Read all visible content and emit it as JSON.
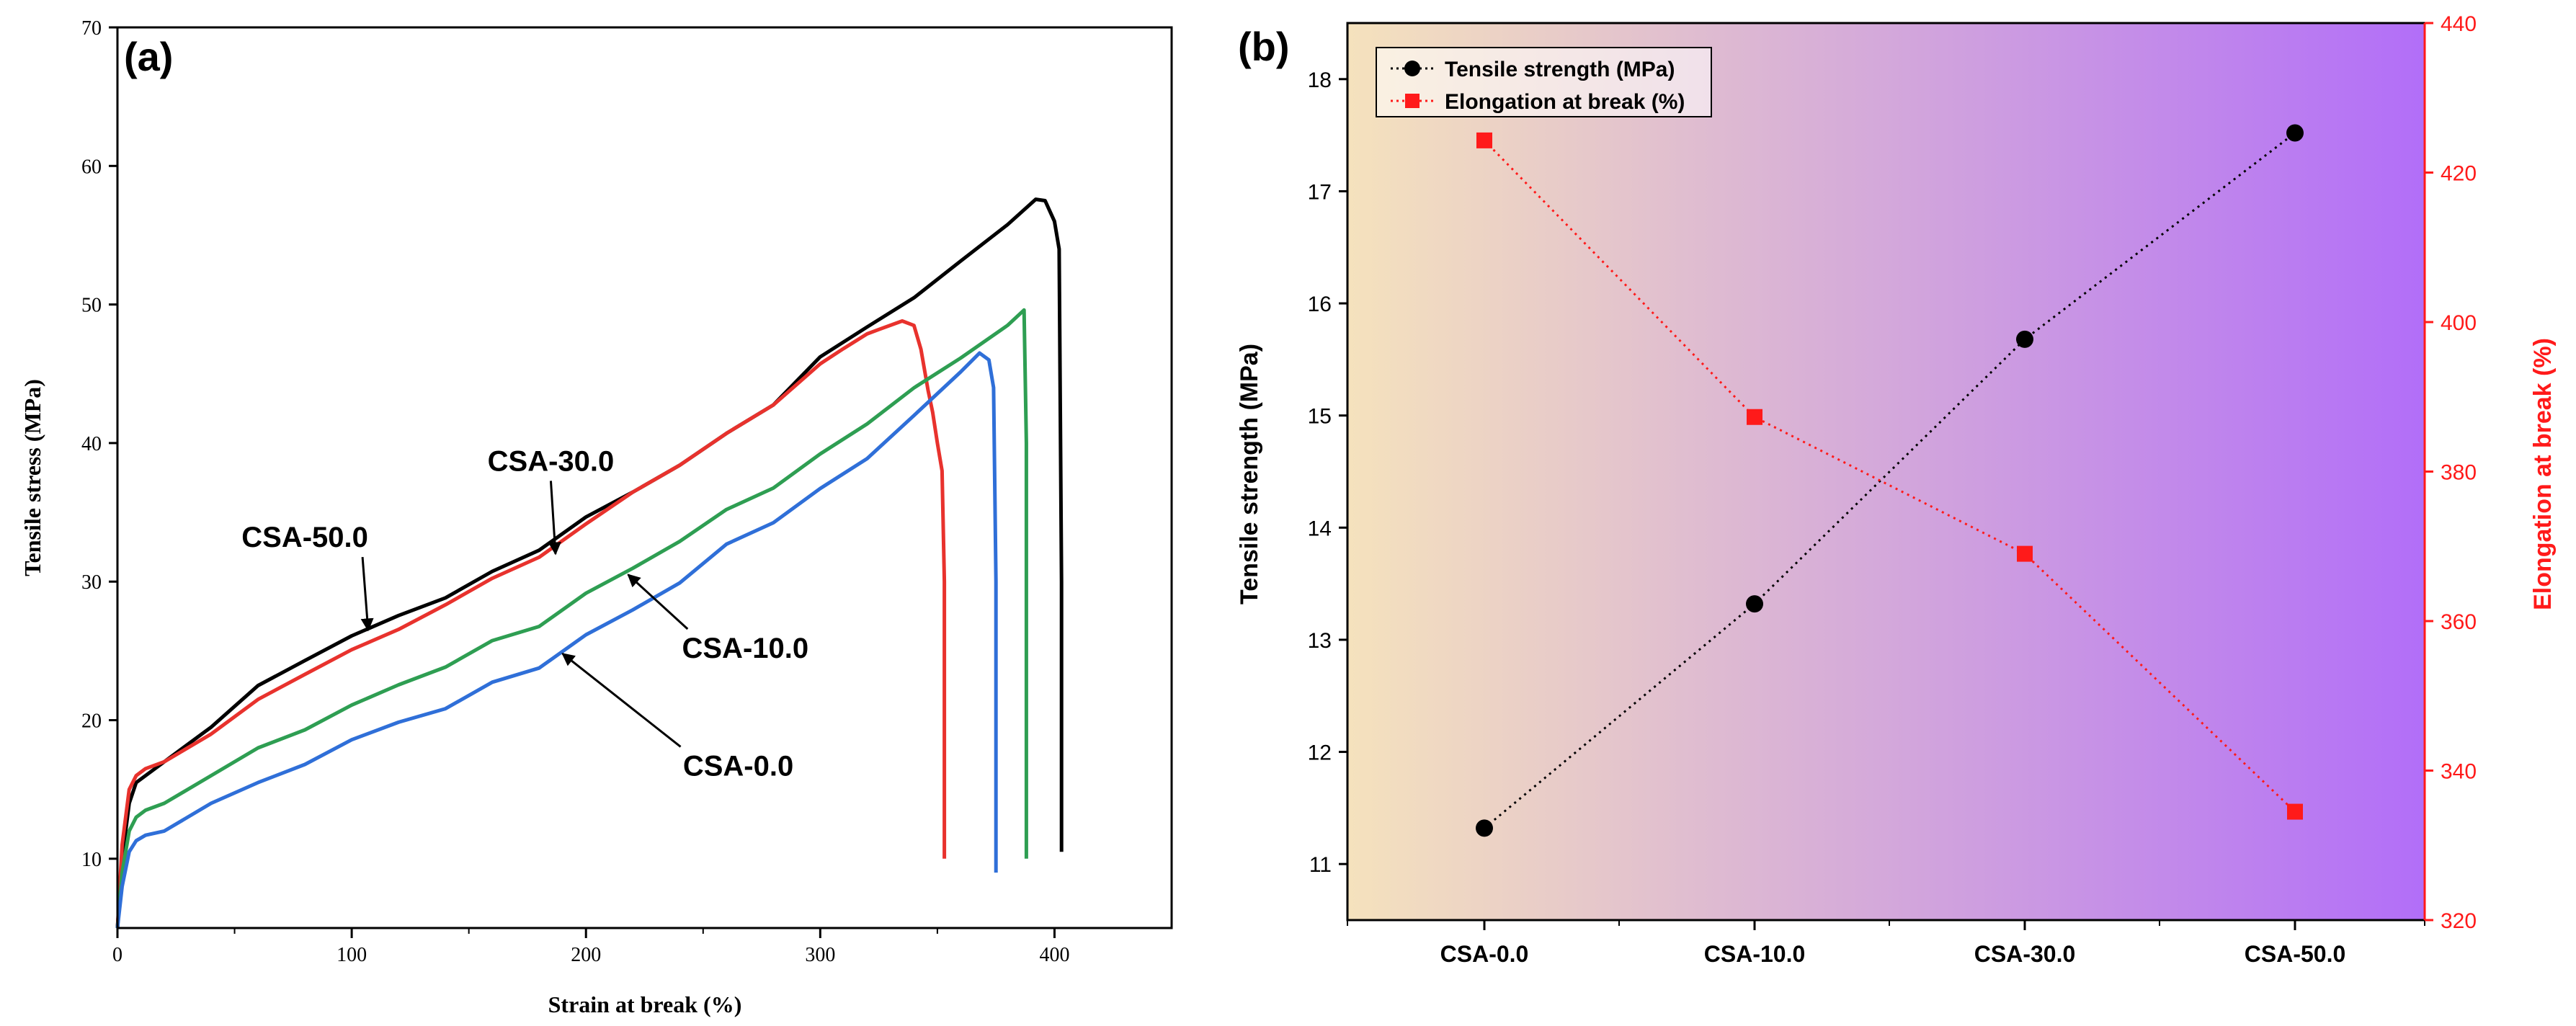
{
  "chart_data": [
    {
      "panel": "(a)",
      "type": "line",
      "xlabel": "Strain at break (%)",
      "ylabel": "Tensile stress (MPa)",
      "xlim": [
        0,
        450
      ],
      "ylim": [
        5,
        70
      ],
      "xticks": [
        0,
        100,
        200,
        300,
        400
      ],
      "yticks": [
        10,
        20,
        30,
        40,
        50,
        60,
        70
      ],
      "series": [
        {
          "name": "CSA-50.0",
          "color": "#000000",
          "x": [
            0,
            2,
            5,
            8,
            12,
            20,
            40,
            60,
            80,
            100,
            120,
            140,
            160,
            180,
            200,
            220,
            240,
            260,
            280,
            300,
            320,
            340,
            360,
            380,
            392,
            396,
            400,
            402,
            403,
            403
          ],
          "y": [
            5,
            10,
            14,
            15.5,
            16,
            17,
            19.5,
            22.5,
            24.5,
            26,
            27.5,
            29,
            30.5,
            32.5,
            34.5,
            36.5,
            38.5,
            40.5,
            43,
            46,
            48.5,
            50.5,
            53,
            56,
            57.5,
            57.3,
            56,
            54,
            30,
            10.5
          ]
        },
        {
          "name": "CSA-30.0",
          "color": "#e8322d",
          "x": [
            0,
            2,
            5,
            8,
            12,
            20,
            40,
            60,
            80,
            100,
            120,
            140,
            160,
            180,
            200,
            220,
            240,
            260,
            280,
            300,
            310,
            320,
            325,
            335,
            340,
            343,
            346,
            348,
            350,
            352,
            353,
            353
          ],
          "y": [
            5,
            11,
            15,
            16,
            16.5,
            17,
            19,
            21.5,
            23.5,
            25,
            26.5,
            28.5,
            30,
            32,
            34,
            36.5,
            38.5,
            40.5,
            43,
            45.5,
            47,
            48,
            48.3,
            49,
            48.5,
            47,
            44,
            42,
            40,
            38,
            30,
            10
          ]
        },
        {
          "name": "CSA-10.0",
          "color": "#2e9e52",
          "x": [
            0,
            2,
            5,
            8,
            12,
            20,
            40,
            60,
            80,
            100,
            120,
            140,
            160,
            180,
            200,
            220,
            240,
            260,
            280,
            300,
            320,
            340,
            360,
            380,
            387,
            388,
            388
          ],
          "y": [
            5,
            9,
            12,
            13,
            13.5,
            14,
            16,
            18,
            19.5,
            21,
            22.5,
            24,
            25.5,
            27,
            29,
            31,
            33,
            35,
            37,
            39,
            41.5,
            44,
            46,
            48.5,
            49.6,
            40,
            10
          ]
        },
        {
          "name": "CSA-0.0",
          "color": "#2f6fd8",
          "x": [
            0,
            2,
            5,
            8,
            12,
            20,
            40,
            60,
            80,
            100,
            120,
            140,
            160,
            180,
            200,
            220,
            240,
            260,
            280,
            300,
            320,
            340,
            360,
            368,
            372,
            374,
            375,
            375
          ],
          "y": [
            5,
            8,
            10.5,
            11.3,
            11.7,
            12,
            14,
            15.5,
            17,
            18.5,
            19.8,
            21,
            22.5,
            24,
            26,
            28,
            30,
            32.5,
            34.5,
            36.5,
            39,
            42,
            45,
            46.6,
            46,
            44,
            30,
            9
          ]
        }
      ],
      "annotations": [
        {
          "text": "CSA-50.0",
          "x": 80,
          "y": 32.5,
          "arrow_to": [
            107,
            26.5
          ]
        },
        {
          "text": "CSA-30.0",
          "x": 185,
          "y": 38,
          "arrow_to": [
            187,
            32
          ]
        },
        {
          "text": "CSA-10.0",
          "x": 268,
          "y": 24.5,
          "arrow_to": [
            218,
            30.5
          ]
        },
        {
          "text": "CSA-0.0",
          "x": 265,
          "y": 16,
          "arrow_to": [
            190,
            24.8
          ]
        }
      ]
    },
    {
      "panel": "(b)",
      "type": "line",
      "categories": [
        "CSA-0.0",
        "CSA-10.0",
        "CSA-30.0",
        "CSA-50.0"
      ],
      "ylabel": "Tensile strength (MPa)",
      "ylabel_right": "Elongation at break (%)",
      "ylim": [
        10.5,
        18.5
      ],
      "ylim_right": [
        320,
        440
      ],
      "yticks": [
        11,
        12,
        13,
        14,
        15,
        16,
        17,
        18
      ],
      "yticks_right": [
        320,
        340,
        360,
        380,
        400,
        420,
        440
      ],
      "series": [
        {
          "name": "Tensile strength (MPa)",
          "axis": "left",
          "marker": "circle",
          "color": "#000000",
          "values": [
            11.32,
            13.32,
            15.68,
            17.52
          ]
        },
        {
          "name": "Elongation at break (%)",
          "axis": "right",
          "marker": "square",
          "color": "#ff1a1a",
          "values": [
            424.3,
            387.3,
            369.0,
            334.5
          ]
        }
      ],
      "background_gradient": [
        "#f5e2bd",
        "#b26ef8"
      ]
    }
  ]
}
